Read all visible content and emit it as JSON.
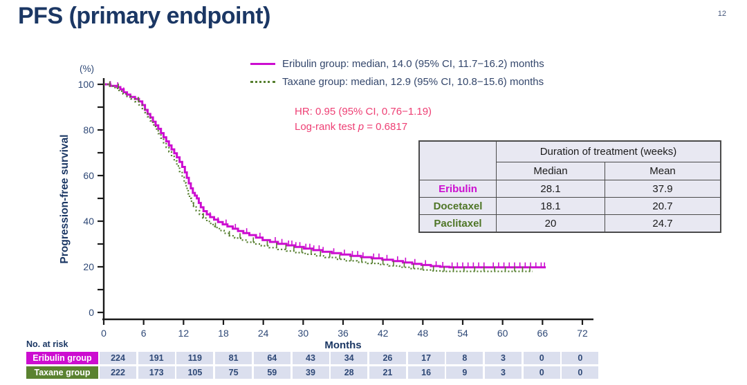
{
  "slide": {
    "title": "PFS (primary endpoint)",
    "page_number": "12"
  },
  "colors": {
    "title_navy": "#1b3764",
    "axis_text": "#2e4876",
    "legend_text": "#33466b",
    "eribulin_magenta": "#cc0dd0",
    "taxane_green": "#567f2f",
    "hr_pink": "#ee3f74",
    "table_bg": "#e8e8f2",
    "risk_cell_bg": "#dbdfee"
  },
  "hr_annotation": {
    "line1": "HR: 0.95 (95% CI, 0.76−1.19)",
    "line2_prefix": "Log-rank test ",
    "line2_var": "p",
    "line2_suffix": " = 0.6817"
  },
  "treatment_table": {
    "header": "Duration of treatment (weeks)",
    "columns": [
      "Median",
      "Mean"
    ],
    "rows": [
      {
        "label": "Eribulin",
        "color": "#cc0dd0",
        "median": "28.1",
        "mean": "37.9"
      },
      {
        "label": "Docetaxel",
        "color": "#4e7526",
        "median": "18.1",
        "mean": "20.7"
      },
      {
        "label": "Paclitaxel",
        "color": "#4e7526",
        "median": "20",
        "mean": "24.7"
      }
    ]
  },
  "chart_data": {
    "type": "line",
    "subtype": "kaplan-meier-step",
    "xlabel": "Months",
    "ylabel": "Progression-free survival",
    "y_unit_label": "(%)",
    "xlim": [
      0,
      72
    ],
    "ylim": [
      0,
      100
    ],
    "x_ticks": [
      0,
      6,
      12,
      18,
      24,
      30,
      36,
      42,
      48,
      54,
      60,
      66,
      72
    ],
    "y_ticks": [
      0,
      10,
      20,
      30,
      40,
      50,
      60,
      70,
      80,
      90,
      100
    ],
    "y_tick_labels": [
      0,
      20,
      40,
      60,
      80,
      100
    ],
    "grid": false,
    "legend_position": "top",
    "series": [
      {
        "name": "Eribulin group",
        "label": "Eribulin group: median, 14.0 (95% CI, 11.7−16.2) months",
        "median_months": 14.0,
        "ci_95": "11.7−16.2",
        "color": "#cc0dd0",
        "style": "solid",
        "steps": [
          [
            0,
            100
          ],
          [
            1,
            99.3
          ],
          [
            2,
            98.8
          ],
          [
            2.5,
            97.8
          ],
          [
            3,
            96.5
          ],
          [
            3.5,
            95.5
          ],
          [
            4,
            94.5
          ],
          [
            4.7,
            93.6
          ],
          [
            5.3,
            92.5
          ],
          [
            5.8,
            90.9
          ],
          [
            6.2,
            88.8
          ],
          [
            6.6,
            87
          ],
          [
            7,
            85.5
          ],
          [
            7.4,
            83.6
          ],
          [
            7.8,
            82
          ],
          [
            8.2,
            80.5
          ],
          [
            8.6,
            78.6
          ],
          [
            9,
            76.8
          ],
          [
            9.4,
            75
          ],
          [
            9.8,
            73.2
          ],
          [
            10.2,
            71.5
          ],
          [
            10.6,
            69.8
          ],
          [
            11,
            68
          ],
          [
            11.4,
            66
          ],
          [
            11.8,
            63.8
          ],
          [
            12.2,
            61.4
          ],
          [
            12.5,
            59
          ],
          [
            12.8,
            56.6
          ],
          [
            13.1,
            54.4
          ],
          [
            13.4,
            52.4
          ],
          [
            13.7,
            51.2
          ],
          [
            14,
            50
          ],
          [
            14.3,
            48
          ],
          [
            14.6,
            46.1
          ],
          [
            15,
            44.4
          ],
          [
            15.5,
            43
          ],
          [
            16,
            41.8
          ],
          [
            16.6,
            40.7
          ],
          [
            17.2,
            39.6
          ],
          [
            17.9,
            38.6
          ],
          [
            18.6,
            37.7
          ],
          [
            19.4,
            36.7
          ],
          [
            20.2,
            35.7
          ],
          [
            21,
            34.8
          ],
          [
            21.9,
            33.9
          ],
          [
            22.9,
            32.8
          ],
          [
            23.9,
            31.7
          ],
          [
            25,
            30.9
          ],
          [
            26.2,
            30.1
          ],
          [
            27.5,
            29.4
          ],
          [
            28.8,
            28.7
          ],
          [
            30.1,
            28
          ],
          [
            31.5,
            27.3
          ],
          [
            32.9,
            26.6
          ],
          [
            34.3,
            26
          ],
          [
            35.7,
            25.4
          ],
          [
            37.1,
            24.8
          ],
          [
            38.7,
            24.2
          ],
          [
            40.3,
            23.7
          ],
          [
            41.9,
            23.1
          ],
          [
            43.5,
            22.5
          ],
          [
            45,
            21.9
          ],
          [
            46.4,
            21.3
          ],
          [
            47.8,
            20.8
          ],
          [
            49.2,
            20.3
          ],
          [
            50.6,
            20
          ],
          [
            52,
            19.8
          ],
          [
            66.5,
            19.8
          ]
        ],
        "censor_times": [
          1,
          2.1,
          3,
          14.6,
          16,
          17.2,
          18.4,
          19.8,
          21.5,
          23.5,
          25.8,
          26.8,
          27.8,
          28.3,
          28.9,
          29.5,
          30.4,
          31,
          31.6,
          32.4,
          33,
          34.6,
          36.2,
          37.4,
          38.2,
          39,
          40.6,
          41.4,
          42.6,
          44.2,
          45.4,
          46.8,
          48.4,
          50,
          51,
          52.4,
          53.2,
          54,
          54.8,
          55.6,
          56.4,
          57.2,
          58.6,
          59.4,
          60.2,
          61,
          61.8,
          62.6,
          63.4,
          64.2,
          65,
          65.8,
          66.3
        ]
      },
      {
        "name": "Taxane group",
        "label": "Taxane group: median, 12.9 (95% CI, 10.8−15.6) months",
        "median_months": 12.9,
        "ci_95": "10.8−15.6",
        "color": "#567f2f",
        "style": "dotted",
        "steps": [
          [
            0,
            100
          ],
          [
            0.9,
            99.2
          ],
          [
            1.7,
            98.2
          ],
          [
            2.3,
            97
          ],
          [
            2.9,
            95.8
          ],
          [
            3.5,
            94.7
          ],
          [
            4.1,
            93.6
          ],
          [
            4.7,
            92.4
          ],
          [
            5.3,
            91
          ],
          [
            5.8,
            89.4
          ],
          [
            6.2,
            87.6
          ],
          [
            6.6,
            85.8
          ],
          [
            7,
            84
          ],
          [
            7.4,
            82.2
          ],
          [
            7.8,
            80.4
          ],
          [
            8.2,
            78.4
          ],
          [
            8.6,
            76.4
          ],
          [
            9,
            74.4
          ],
          [
            9.4,
            72.4
          ],
          [
            9.8,
            70.4
          ],
          [
            10.2,
            68.4
          ],
          [
            10.6,
            66.4
          ],
          [
            11,
            64.2
          ],
          [
            11.4,
            61.8
          ],
          [
            11.8,
            59.2
          ],
          [
            12.1,
            56.8
          ],
          [
            12.4,
            54.4
          ],
          [
            12.7,
            52
          ],
          [
            12.9,
            50
          ],
          [
            13.2,
            48
          ],
          [
            13.5,
            46.2
          ],
          [
            13.9,
            44.6
          ],
          [
            14.4,
            43
          ],
          [
            14.9,
            41.4
          ],
          [
            15.5,
            39.9
          ],
          [
            16.1,
            38.5
          ],
          [
            16.7,
            37.2
          ],
          [
            17.4,
            35.9
          ],
          [
            18.1,
            34.7
          ],
          [
            18.9,
            33.6
          ],
          [
            19.7,
            32.6
          ],
          [
            20.6,
            31.7
          ],
          [
            21.6,
            30.8
          ],
          [
            22.6,
            30
          ],
          [
            23.7,
            29.2
          ],
          [
            24.9,
            28.4
          ],
          [
            26.2,
            27.6
          ],
          [
            27.5,
            26.9
          ],
          [
            28.9,
            26.2
          ],
          [
            30.3,
            25.5
          ],
          [
            31.8,
            24.8
          ],
          [
            33.3,
            24.1
          ],
          [
            34.9,
            23.3
          ],
          [
            36.5,
            22.6
          ],
          [
            38.1,
            22
          ],
          [
            39.7,
            21.5
          ],
          [
            41.3,
            21
          ],
          [
            42.9,
            20.4
          ],
          [
            44.5,
            19.8
          ],
          [
            46.1,
            19.2
          ],
          [
            47.7,
            18.6
          ],
          [
            49.3,
            18.2
          ],
          [
            50.7,
            18
          ],
          [
            64.5,
            18
          ]
        ],
        "censor_times": [
          0.9,
          2.2,
          5.2,
          13.5,
          15,
          16.8,
          18.9,
          20.5,
          22.5,
          24.6,
          26,
          27.4,
          28.6,
          29.8,
          31.2,
          32.6,
          34,
          35.5,
          37.2,
          38.8,
          40.4,
          42,
          43.6,
          45.2,
          46.6,
          48,
          49.6,
          51.2,
          52.6,
          54.2,
          55.8,
          57.2,
          58.8,
          60.4,
          61.8,
          63,
          64.1
        ]
      }
    ],
    "annotations": [
      "HR: 0.95 (95% CI, 0.76−1.19)",
      "Log-rank test p = 0.6817"
    ],
    "no_at_risk": {
      "label": "No. at risk",
      "time_points": [
        0,
        6,
        12,
        18,
        24,
        30,
        36,
        42,
        48,
        54,
        60,
        66,
        72
      ],
      "groups": [
        {
          "name": "Eribulin group",
          "color": "#cc0dd0",
          "values": [
            224,
            191,
            119,
            81,
            64,
            43,
            34,
            26,
            17,
            8,
            3,
            0,
            0
          ]
        },
        {
          "name": "Taxane group",
          "color": "#5a8230",
          "values": [
            222,
            173,
            105,
            75,
            59,
            39,
            28,
            21,
            16,
            9,
            3,
            0,
            0
          ]
        }
      ]
    }
  }
}
